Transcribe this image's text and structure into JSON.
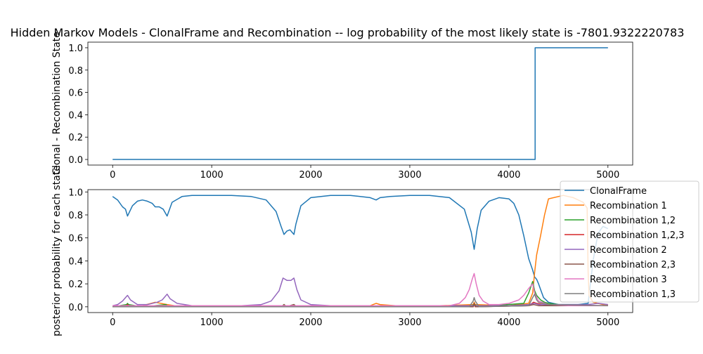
{
  "chart_data": [
    {
      "type": "line",
      "title": "Hidden Markov Models - ClonalFrame and Recombination -- log probability of the most likely state is  -7801.9322220783",
      "xlabel": "",
      "ylabel": "Clonal - Recombination State",
      "xlim": [
        -250,
        5250
      ],
      "ylim": [
        -0.05,
        1.05
      ],
      "xticks": [
        "0",
        "1000",
        "2000",
        "3000",
        "4000",
        "5000"
      ],
      "yticks": [
        "0.0",
        "0.2",
        "0.4",
        "0.6",
        "0.8",
        "1.0"
      ],
      "series": [
        {
          "color": "#1f77b4",
          "x": [
            0,
            4265,
            4265,
            5000
          ],
          "y": [
            0,
            0,
            1,
            1
          ]
        }
      ]
    },
    {
      "type": "line",
      "title": "",
      "xlabel": "",
      "ylabel": "posterior probability for each state",
      "xlim": [
        -250,
        5250
      ],
      "ylim": [
        -0.05,
        1.02
      ],
      "xticks": [
        "0",
        "1000",
        "2000",
        "3000",
        "4000",
        "5000"
      ],
      "yticks": [
        "0.0",
        "0.2",
        "0.4",
        "0.6",
        "0.8",
        "1.0"
      ],
      "legend_position": "right",
      "series": [
        {
          "name": "ClonalFrame",
          "color": "#1f77b4",
          "x": [
            0,
            50,
            100,
            130,
            150,
            200,
            250,
            300,
            350,
            400,
            430,
            470,
            510,
            550,
            600,
            700,
            800,
            1000,
            1200,
            1400,
            1550,
            1650,
            1700,
            1730,
            1760,
            1790,
            1810,
            1830,
            1850,
            1900,
            2000,
            2200,
            2400,
            2600,
            2660,
            2700,
            2800,
            3000,
            3200,
            3400,
            3550,
            3620,
            3650,
            3680,
            3720,
            3800,
            3900,
            4000,
            4050,
            4100,
            4150,
            4200,
            4240,
            4260,
            4280,
            4300,
            4320,
            4350,
            4400,
            4500,
            4700,
            4800,
            4850,
            4900,
            4950,
            5000
          ],
          "y": [
            0.96,
            0.93,
            0.87,
            0.85,
            0.79,
            0.88,
            0.92,
            0.93,
            0.92,
            0.9,
            0.87,
            0.87,
            0.85,
            0.79,
            0.91,
            0.96,
            0.97,
            0.97,
            0.97,
            0.96,
            0.93,
            0.83,
            0.7,
            0.63,
            0.66,
            0.67,
            0.65,
            0.63,
            0.72,
            0.88,
            0.95,
            0.97,
            0.97,
            0.95,
            0.93,
            0.95,
            0.96,
            0.97,
            0.97,
            0.95,
            0.85,
            0.65,
            0.5,
            0.68,
            0.84,
            0.92,
            0.95,
            0.94,
            0.9,
            0.8,
            0.62,
            0.42,
            0.32,
            0.26,
            0.24,
            0.2,
            0.15,
            0.08,
            0.04,
            0.02,
            0.02,
            0.03,
            0.4,
            0.64,
            0.7,
            0.68
          ]
        },
        {
          "name": "Recombination 1",
          "color": "#ff7f0e",
          "x": [
            0,
            150,
            300,
            430,
            550,
            700,
            2600,
            2660,
            2700,
            3000,
            3640,
            3650,
            3660,
            4000,
            4200,
            4240,
            4260,
            4280,
            4320,
            4360,
            4400,
            4500,
            4550,
            4600,
            4650,
            4700,
            4750,
            4790,
            4800,
            4810,
            4850,
            4900,
            4950,
            5000
          ],
          "y": [
            0.0,
            0.01,
            0.01,
            0.04,
            0.02,
            0.0,
            0.01,
            0.03,
            0.02,
            0.0,
            0.02,
            0.04,
            0.02,
            0.01,
            0.03,
            0.12,
            0.3,
            0.45,
            0.62,
            0.8,
            0.94,
            0.96,
            0.97,
            0.96,
            0.95,
            0.93,
            0.91,
            0.86,
            0.3,
            0.1,
            0.04,
            0.03,
            0.02,
            0.02
          ]
        },
        {
          "name": "Recombination 1,2",
          "color": "#2ca02c",
          "x": [
            0,
            140,
            150,
            160,
            300,
            540,
            560,
            700,
            1700,
            1730,
            1760,
            1830,
            1860,
            3600,
            3650,
            3700,
            4150,
            4200,
            4240,
            4260,
            4280,
            4320,
            4360,
            4400,
            4500,
            4800,
            5000
          ],
          "y": [
            0.0,
            0.02,
            0.03,
            0.02,
            0.0,
            0.02,
            0.0,
            0.0,
            0.0,
            0.02,
            0.0,
            0.02,
            0.0,
            0.0,
            0.02,
            0.0,
            0.03,
            0.12,
            0.22,
            0.14,
            0.1,
            0.06,
            0.04,
            0.03,
            0.02,
            0.01,
            0.01
          ]
        },
        {
          "name": "Recombination 1,2,3",
          "color": "#d62728",
          "x": [
            0,
            140,
            150,
            160,
            300,
            540,
            560,
            700,
            1720,
            1730,
            1740,
            1820,
            1830,
            1840,
            3640,
            3650,
            3660,
            4200,
            4250,
            4280,
            4350,
            4500,
            5000
          ],
          "y": [
            0.0,
            0.01,
            0.02,
            0.01,
            0.0,
            0.01,
            0.0,
            0.0,
            0.0,
            0.02,
            0.0,
            0.0,
            0.02,
            0.0,
            0.0,
            0.02,
            0.0,
            0.01,
            0.04,
            0.03,
            0.02,
            0.01,
            0.01
          ]
        },
        {
          "name": "Recombination 2",
          "color": "#9467bd",
          "x": [
            0,
            50,
            100,
            130,
            150,
            180,
            250,
            350,
            450,
            500,
            530,
            550,
            580,
            650,
            800,
            1000,
            1300,
            1500,
            1600,
            1680,
            1720,
            1760,
            1800,
            1830,
            1860,
            1900,
            2000,
            2200,
            2600,
            3000,
            3600,
            4000,
            4200,
            4260,
            4300,
            4400,
            4600,
            4800,
            4900,
            5000
          ],
          "y": [
            0.01,
            0.02,
            0.05,
            0.08,
            0.1,
            0.06,
            0.02,
            0.02,
            0.04,
            0.06,
            0.09,
            0.11,
            0.07,
            0.03,
            0.01,
            0.01,
            0.01,
            0.02,
            0.05,
            0.14,
            0.25,
            0.23,
            0.23,
            0.25,
            0.15,
            0.06,
            0.02,
            0.01,
            0.01,
            0.01,
            0.01,
            0.01,
            0.02,
            0.03,
            0.02,
            0.02,
            0.02,
            0.02,
            0.03,
            0.02
          ]
        },
        {
          "name": "Recombination 2,3",
          "color": "#8c564b",
          "x": [
            0,
            150,
            300,
            550,
            700,
            1720,
            1730,
            1745,
            1830,
            1845,
            3640,
            3650,
            3665,
            4200,
            4250,
            4300,
            4400,
            5000
          ],
          "y": [
            0.0,
            0.01,
            0.0,
            0.01,
            0.0,
            0.0,
            0.02,
            0.0,
            0.02,
            0.0,
            0.0,
            0.03,
            0.0,
            0.01,
            0.02,
            0.01,
            0.01,
            0.01
          ]
        },
        {
          "name": "Recombination 3",
          "color": "#e377c2",
          "x": [
            0,
            500,
            2600,
            3400,
            3500,
            3560,
            3600,
            3630,
            3650,
            3670,
            3700,
            3740,
            3800,
            3900,
            4000,
            4100,
            4150,
            4200,
            4240,
            4260,
            4300,
            4400,
            4600,
            5000
          ],
          "y": [
            0.01,
            0.01,
            0.01,
            0.01,
            0.03,
            0.08,
            0.15,
            0.24,
            0.29,
            0.2,
            0.1,
            0.05,
            0.02,
            0.02,
            0.03,
            0.06,
            0.1,
            0.16,
            0.2,
            0.12,
            0.05,
            0.02,
            0.01,
            0.01
          ]
        },
        {
          "name": "Recombination 1,3",
          "color": "#7f7f7f",
          "x": [
            0,
            3600,
            3640,
            3650,
            3660,
            3700,
            4200,
            4240,
            4260,
            4280,
            4300,
            4400,
            5000
          ],
          "y": [
            0.0,
            0.0,
            0.05,
            0.08,
            0.05,
            0.0,
            0.01,
            0.08,
            0.11,
            0.06,
            0.04,
            0.02,
            0.01
          ]
        }
      ]
    }
  ]
}
